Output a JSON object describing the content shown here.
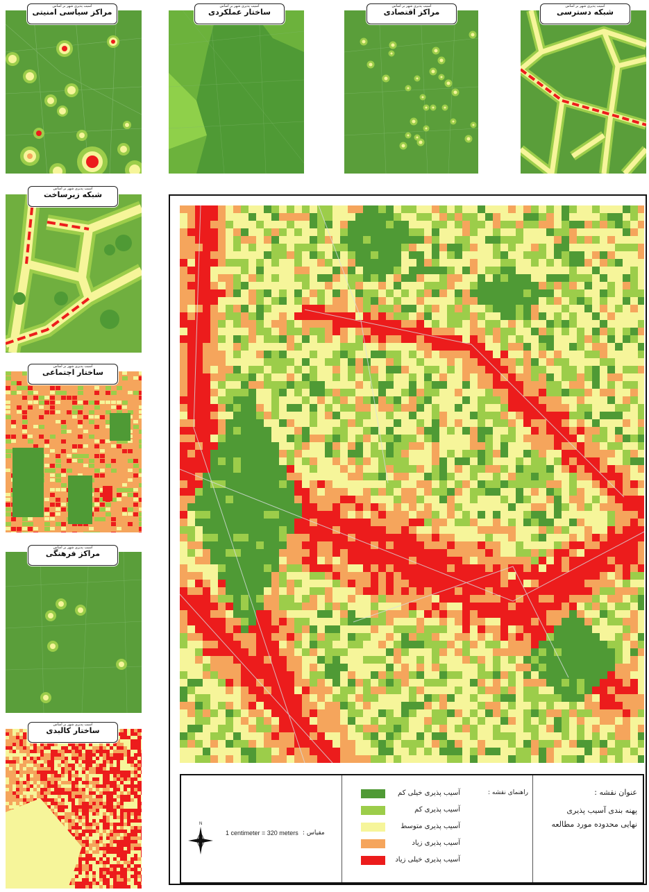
{
  "panels": [
    {
      "id": "security",
      "sub": "آسیب پذیری شهر بر اساس",
      "title": "مراکز سیاسی امنیتی"
    },
    {
      "id": "functional",
      "sub": "آسیب پذیری شهر بر اساس",
      "title": "ساختار عملکردی"
    },
    {
      "id": "economic",
      "sub": "آسیب پذیری شهر بر اساس",
      "title": "مراکز اقتصادی"
    },
    {
      "id": "access",
      "sub": "آسیب پذیری شهر بر اساس",
      "title": "شبکه دسترسی"
    },
    {
      "id": "infrastructure",
      "sub": "آسیب پذیری شهر بر اساس",
      "title": "شبکه زیرساخت"
    },
    {
      "id": "social",
      "sub": "آسیب پذیری شهر بر اساس",
      "title": "ساختار اجتماعی"
    },
    {
      "id": "cultural",
      "sub": "آسیب پذیری شهر بر اساس",
      "title": "مراکز فرهنگی"
    },
    {
      "id": "physical",
      "sub": "آسیب پذیری شهر بر اساس",
      "title": "ساختار کالبدی"
    }
  ],
  "legend": {
    "map_title_label": "عنوان نقشه :",
    "map_title_line1": "پهنه بندی آسیب پذیری",
    "map_title_line2": "نهایی محدوده مورد مطالعه",
    "guide_label": "راهنمای نقشه :",
    "classes": [
      {
        "label": "آسیب پذیری خیلی کم",
        "color": "#4f9a35"
      },
      {
        "label": "آسیب پذیری کم",
        "color": "#9ccd4a"
      },
      {
        "label": "آسیب پذیری متوسط",
        "color": "#f6f59a"
      },
      {
        "label": "آسیب پذیری زیاد",
        "color": "#f5a55c"
      },
      {
        "label": "آسیب پذیری خیلی زیاد",
        "color": "#ec1c1c"
      }
    ],
    "scale_label": "مقیاس :",
    "scale_value": "1 centimeter = 320 meters",
    "north": "N"
  },
  "colors": {
    "very_low": "#4f9a35",
    "low": "#9ccd4a",
    "medium": "#f6f59a",
    "high": "#f5a55c",
    "very_high": "#ec1c1c",
    "road": "#c8d6c8"
  }
}
